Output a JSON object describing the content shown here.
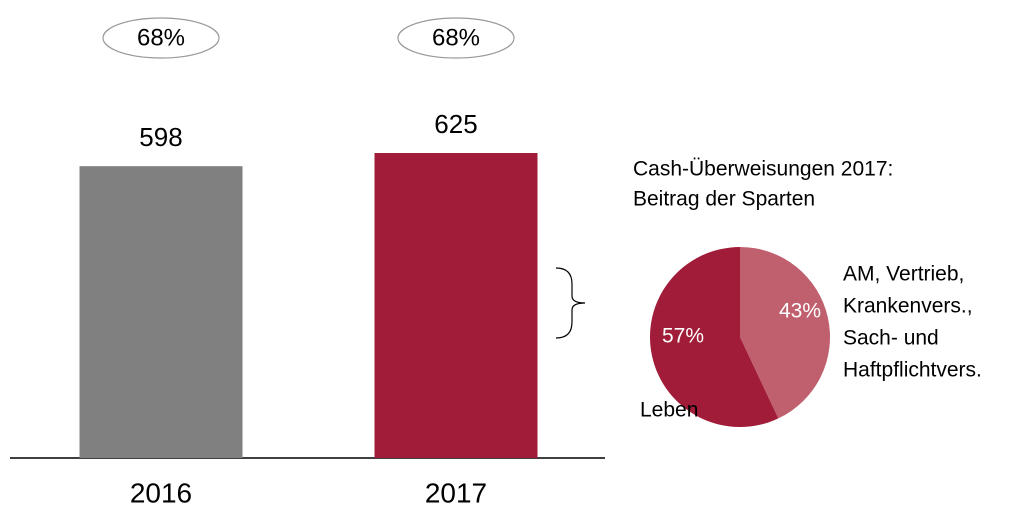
{
  "chart_data": [
    {
      "type": "bar",
      "categories": [
        "2016",
        "2017"
      ],
      "values": [
        598,
        625
      ],
      "colors": [
        "#808080",
        "#a01c38"
      ],
      "ratio_values": [
        68,
        68
      ],
      "ratio_labels": [
        "68%",
        "68%"
      ]
    },
    {
      "type": "pie",
      "title": [
        "Cash-Überweisungen 2017:",
        "Beitrag der Sparten"
      ],
      "categories": [
        [
          "Leben"
        ],
        [
          "AM, Vertrieb,",
          "Krankenvers.,",
          "Sach- und",
          "Haftpflichtvers."
        ]
      ],
      "values": [
        57,
        43
      ],
      "value_labels": [
        "57%",
        "43%"
      ],
      "colors": [
        "#a01c38",
        "#c0606e"
      ]
    }
  ]
}
